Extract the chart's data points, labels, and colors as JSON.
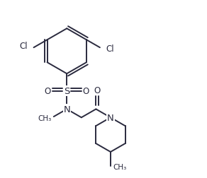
{
  "bg_color": "#ffffff",
  "line_color": "#2a2a3e",
  "line_width": 1.4,
  "font_size": 8.5,
  "font_size_small": 7.5,
  "figsize": [
    2.92,
    2.53
  ],
  "dpi": 100,
  "xlim": [
    0,
    9.5
  ],
  "ylim": [
    0,
    8.2
  ]
}
